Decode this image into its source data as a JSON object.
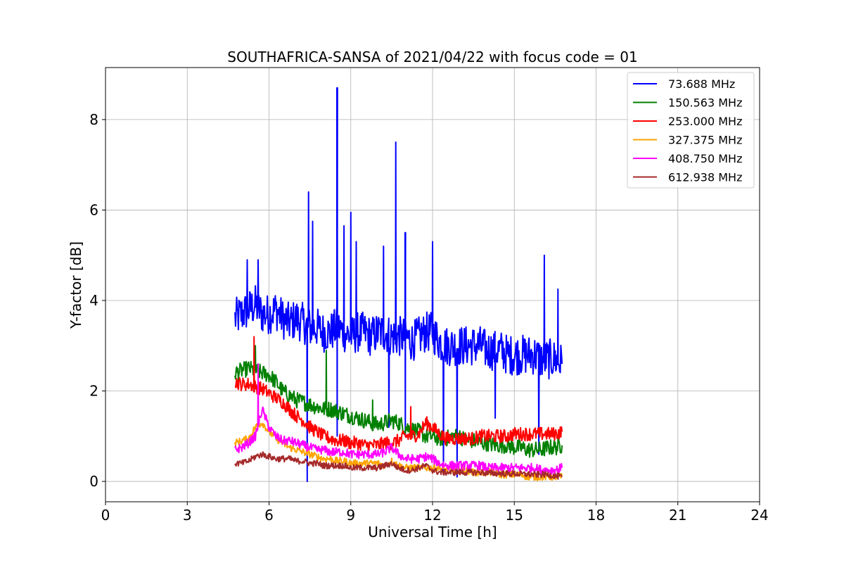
{
  "chart_data": {
    "type": "line",
    "title": "SOUTHAFRICA-SANSA of 2021/04/22 with focus code = 01",
    "xlabel": "Universal Time [h]",
    "ylabel": "Y-factor [dB]",
    "xlim": [
      0,
      24
    ],
    "ylim": [
      -0.45,
      9.15
    ],
    "xticks": [
      0,
      3,
      6,
      9,
      12,
      15,
      18,
      21,
      24
    ],
    "yticks": [
      0,
      2,
      4,
      6,
      8
    ],
    "grid": true,
    "legend_position": "top-right",
    "time_step_h": 0.25,
    "x_start": 4.75,
    "x_end": 16.75,
    "series": [
      {
        "name": " 73.688 MHz",
        "color": "#0000ff",
        "values": [
          3.6,
          3.7,
          3.8,
          3.9,
          3.7,
          3.7,
          3.8,
          3.6,
          3.5,
          3.6,
          3.5,
          3.4,
          3.4,
          3.3,
          3.3,
          3.4,
          3.3,
          3.2,
          3.3,
          3.3,
          3.2,
          3.3,
          3.3,
          3.2,
          3.2,
          3.2,
          3.1,
          3.2,
          3.3,
          3.3,
          3.1,
          3.0,
          3.0,
          3.0,
          3.0,
          3.0,
          3.0,
          2.9,
          2.9,
          2.9,
          2.8,
          2.8,
          2.8,
          2.8,
          2.8,
          2.7,
          2.7,
          2.7,
          2.6
        ],
        "spikes": [
          [
            5.2,
            4.9
          ],
          [
            5.6,
            4.9
          ],
          [
            7.45,
            6.4
          ],
          [
            7.6,
            5.75
          ],
          [
            8.5,
            8.7
          ],
          [
            8.75,
            5.65
          ],
          [
            9.0,
            5.95
          ],
          [
            9.2,
            5.3
          ],
          [
            10.2,
            5.2
          ],
          [
            10.65,
            7.5
          ],
          [
            11.0,
            5.5
          ],
          [
            12.0,
            5.3
          ],
          [
            16.1,
            5.0
          ],
          [
            16.6,
            4.25
          ]
        ],
        "dips": [
          [
            7.4,
            0.0
          ],
          [
            8.5,
            1.0
          ],
          [
            10.4,
            1.2
          ],
          [
            11.0,
            1.0
          ],
          [
            12.4,
            0.2
          ],
          [
            12.9,
            0.1
          ],
          [
            14.3,
            1.4
          ],
          [
            15.9,
            0.6
          ]
        ],
        "noise": 0.45
      },
      {
        "name": "150.563 MHz",
        "color": "#008000",
        "values": [
          2.4,
          2.45,
          2.5,
          2.45,
          2.4,
          2.35,
          2.2,
          2.0,
          1.9,
          1.8,
          1.75,
          1.7,
          1.65,
          1.6,
          1.6,
          1.55,
          1.5,
          1.45,
          1.4,
          1.35,
          1.3,
          1.25,
          1.3,
          1.35,
          1.3,
          1.2,
          1.15,
          1.1,
          1.0,
          1.0,
          0.95,
          0.95,
          1.0,
          1.0,
          0.9,
          0.9,
          0.85,
          0.85,
          0.8,
          0.8,
          0.8,
          0.75,
          0.75,
          0.7,
          0.7,
          0.7,
          0.75,
          0.75,
          0.8
        ],
        "spikes": [
          [
            5.5,
            3.0
          ],
          [
            8.1,
            2.9
          ],
          [
            9.8,
            1.8
          ]
        ],
        "dips": [],
        "noise": 0.18
      },
      {
        "name": "253.000 MHz",
        "color": "#ff0000",
        "values": [
          2.2,
          2.15,
          2.15,
          2.1,
          2.05,
          1.95,
          1.85,
          1.75,
          1.6,
          1.45,
          1.35,
          1.2,
          1.1,
          1.0,
          0.95,
          0.9,
          0.9,
          0.85,
          0.85,
          0.8,
          0.8,
          0.8,
          0.85,
          0.85,
          0.9,
          1.0,
          1.0,
          1.05,
          1.3,
          1.2,
          1.05,
          0.95,
          0.95,
          0.95,
          0.95,
          0.95,
          1.0,
          1.0,
          1.0,
          1.0,
          1.0,
          1.05,
          1.05,
          1.05,
          1.05,
          1.05,
          1.05,
          1.05,
          1.1
        ],
        "spikes": [
          [
            5.45,
            3.2
          ],
          [
            11.2,
            1.65
          ]
        ],
        "dips": [],
        "noise": 0.15
      },
      {
        "name": "327.375 MHz",
        "color": "#ffa500",
        "values": [
          0.85,
          0.9,
          0.95,
          1.2,
          1.3,
          1.1,
          0.95,
          0.85,
          0.75,
          0.7,
          0.65,
          0.6,
          0.55,
          0.5,
          0.5,
          0.45,
          0.45,
          0.4,
          0.4,
          0.4,
          0.4,
          0.4,
          0.35,
          0.45,
          0.35,
          0.3,
          0.3,
          0.3,
          0.3,
          0.3,
          0.3,
          0.25,
          0.25,
          0.25,
          0.25,
          0.2,
          0.2,
          0.2,
          0.2,
          0.15,
          0.15,
          0.15,
          0.15,
          0.1,
          0.1,
          0.1,
          0.1,
          0.1,
          0.1
        ],
        "spikes": [],
        "dips": [],
        "noise": 0.08
      },
      {
        "name": "408.750 MHz",
        "color": "#ff00ff",
        "values": [
          0.7,
          0.75,
          0.85,
          1.0,
          1.6,
          1.2,
          1.0,
          0.9,
          0.9,
          0.85,
          0.8,
          0.75,
          0.7,
          0.7,
          0.65,
          0.65,
          0.65,
          0.6,
          0.6,
          0.6,
          0.6,
          0.6,
          0.65,
          0.75,
          0.6,
          0.5,
          0.5,
          0.5,
          0.55,
          0.5,
          0.4,
          0.35,
          0.35,
          0.35,
          0.35,
          0.35,
          0.35,
          0.3,
          0.3,
          0.3,
          0.3,
          0.3,
          0.3,
          0.3,
          0.3,
          0.25,
          0.25,
          0.25,
          0.3
        ],
        "spikes": [
          [
            5.6,
            2.6
          ]
        ],
        "dips": [],
        "noise": 0.1
      },
      {
        "name": "612.938 MHz",
        "color": "#a52a2a",
        "values": [
          0.4,
          0.4,
          0.45,
          0.55,
          0.6,
          0.55,
          0.5,
          0.5,
          0.5,
          0.45,
          0.45,
          0.4,
          0.4,
          0.35,
          0.35,
          0.35,
          0.35,
          0.3,
          0.3,
          0.3,
          0.3,
          0.3,
          0.35,
          0.4,
          0.3,
          0.25,
          0.25,
          0.3,
          0.35,
          0.25,
          0.2,
          0.2,
          0.2,
          0.2,
          0.2,
          0.2,
          0.2,
          0.18,
          0.18,
          0.18,
          0.17,
          0.17,
          0.16,
          0.16,
          0.15,
          0.15,
          0.15,
          0.12,
          0.1
        ],
        "spikes": [],
        "dips": [],
        "noise": 0.07
      }
    ]
  }
}
